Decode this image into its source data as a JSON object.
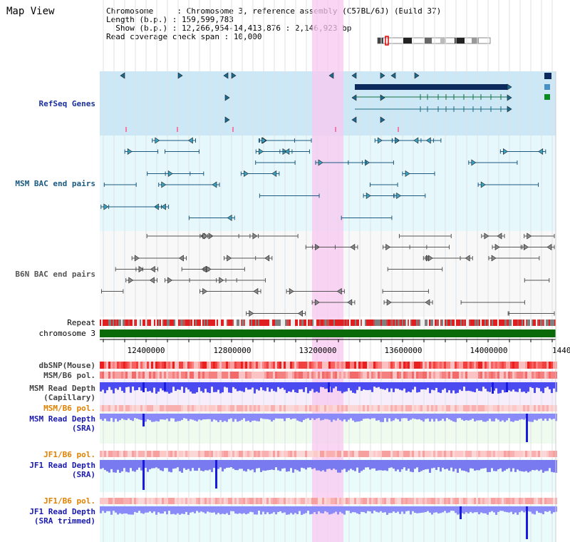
{
  "window_title": "Map View",
  "info": {
    "chromosome_label": "Chromosome     : ",
    "chromosome_value": "Chromosome 3, reference assembly (C57BL/6J) (Build 37)",
    "length_label": "Length (b.p.) : ",
    "length_value": "159,599,783",
    "show_label": "  Show (b.p.) : ",
    "show_value": "12,266,954-14,413,876 : 2,146,923 bp",
    "span_label": "Read coverage check span : ",
    "span_value": "10,000"
  },
  "tracks": {
    "refseq_genes": {
      "label": "RefSeq Genes",
      "color": "#1a2f9a"
    },
    "msm_bac": {
      "label": "MSM BAC end pairs",
      "color": "#1a5a80"
    },
    "b6n_bac": {
      "label": "B6N BAC end pairs",
      "color": "#555555"
    },
    "repeat": {
      "label": "Repeat"
    },
    "chromosome": {
      "label": "chromosome 3"
    },
    "dbsnp": {
      "label": "dbSNP(Mouse)"
    },
    "msm_b6_pol": {
      "label": "MSM/B6 pol."
    },
    "msm_depth_cap": {
      "label1": "MSM Read Depth",
      "label2": "(Capillary)"
    },
    "msm_b6_pol2": {
      "label": "MSM/B6 pol.",
      "color": "#e08000"
    },
    "msm_depth_sra": {
      "label1": "MSM Read Depth",
      "label2": "(SRA)",
      "color": "#1a1ab0"
    },
    "jf1_b6_pol": {
      "label": "JF1/B6 pol.",
      "color": "#e08000"
    },
    "jf1_depth_sra": {
      "label1": "JF1 Read Depth",
      "label2": "(SRA)",
      "color": "#1a1ab0"
    },
    "jf1_b6_pol2": {
      "label": "JF1/B6 pol.",
      "color": "#e08000"
    },
    "jf1_depth_trim": {
      "label1": "JF1 Read Depth",
      "label2": "(SRA trimmed)",
      "color": "#1a1ab0"
    }
  },
  "axis": {
    "ticks": [
      "12400000",
      "12800000",
      "13200000",
      "13600000",
      "14000000",
      "1440"
    ]
  }
}
